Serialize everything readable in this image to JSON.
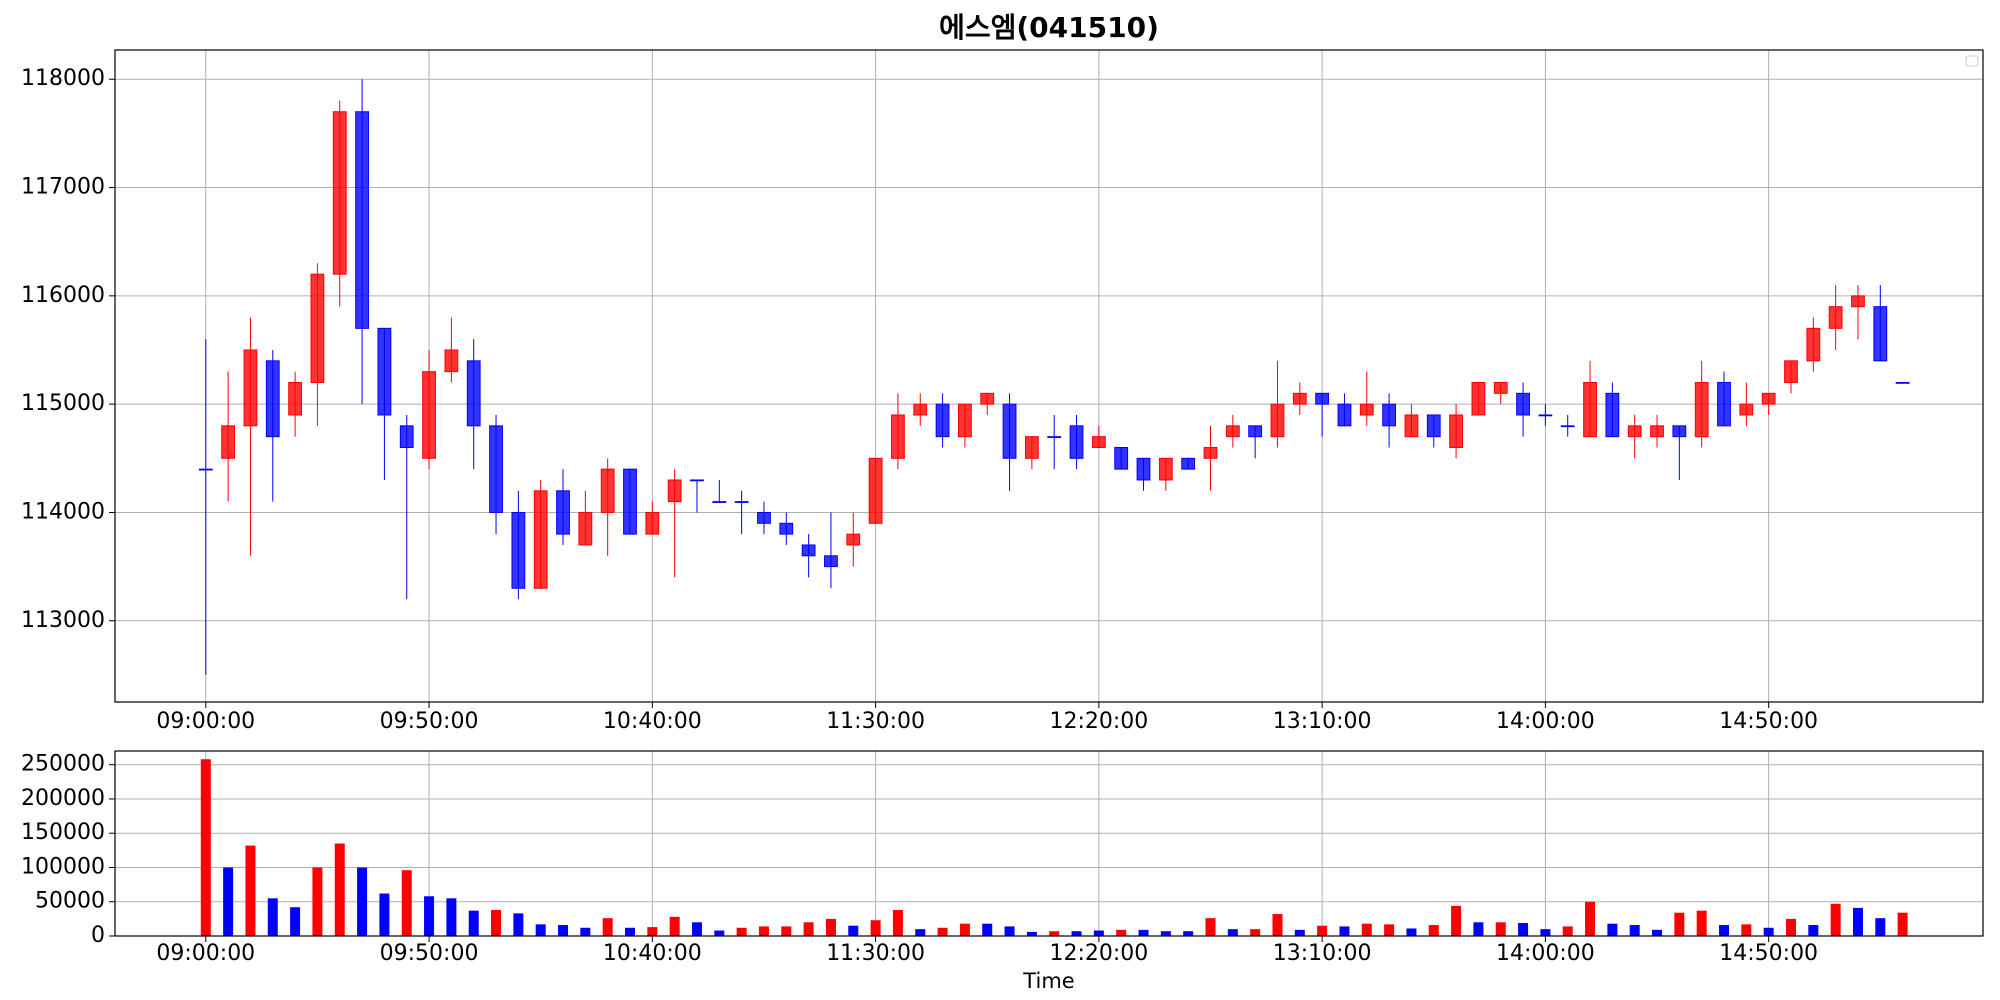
{
  "chart_data": [
    {
      "type": "candlestick",
      "title": "에스엠(041510)",
      "x": [
        "09:00:00",
        "09:05:00",
        "09:10:00",
        "09:15:00",
        "09:20:00",
        "09:25:00",
        "09:30:00",
        "09:35:00",
        "09:40:00",
        "09:45:00",
        "09:50:00",
        "09:55:00",
        "10:00:00",
        "10:05:00",
        "10:10:00",
        "10:15:00",
        "10:20:00",
        "10:25:00",
        "10:30:00",
        "10:35:00",
        "10:40:00",
        "10:45:00",
        "10:50:00",
        "10:55:00",
        "11:00:00",
        "11:05:00",
        "11:10:00",
        "11:15:00",
        "11:20:00",
        "11:25:00",
        "11:30:00",
        "11:35:00",
        "11:40:00",
        "11:45:00",
        "11:50:00",
        "11:55:00",
        "12:00:00",
        "12:05:00",
        "12:10:00",
        "12:15:00",
        "12:20:00",
        "12:25:00",
        "12:30:00",
        "12:35:00",
        "12:40:00",
        "12:45:00",
        "12:50:00",
        "12:55:00",
        "13:00:00",
        "13:05:00",
        "13:10:00",
        "13:15:00",
        "13:20:00",
        "13:25:00",
        "13:30:00",
        "13:35:00",
        "13:40:00",
        "13:45:00",
        "13:50:00",
        "13:55:00",
        "14:00:00",
        "14:05:00",
        "14:10:00",
        "14:15:00",
        "14:20:00",
        "14:25:00",
        "14:30:00",
        "14:35:00",
        "14:40:00",
        "14:45:00",
        "14:50:00",
        "14:55:00",
        "15:00:00",
        "15:05:00",
        "15:10:00",
        "15:15:00",
        "15:20:00"
      ],
      "open": [
        114400,
        114500,
        114800,
        115400,
        114900,
        115200,
        116200,
        117700,
        115700,
        114800,
        114500,
        115300,
        115400,
        114800,
        114000,
        113300,
        114200,
        113700,
        114000,
        114400,
        113800,
        114100,
        114300,
        114100,
        114100,
        114000,
        113900,
        113700,
        113600,
        113700,
        113900,
        114500,
        114900,
        115000,
        114700,
        115000,
        115000,
        114500,
        114700,
        114800,
        114600,
        114600,
        114500,
        114300,
        114500,
        114500,
        114700,
        114800,
        114700,
        115000,
        115100,
        115000,
        114900,
        115000,
        114700,
        114900,
        114600,
        114900,
        115100,
        115100,
        114900,
        114800,
        114700,
        115100,
        114700,
        114700,
        114800,
        114700,
        115200,
        114900,
        115000,
        115200,
        115400,
        115700,
        115900,
        115900,
        115200
      ],
      "high": [
        115600,
        115300,
        115800,
        115500,
        115300,
        116300,
        117800,
        118000,
        115700,
        114900,
        115500,
        115800,
        115600,
        114900,
        114200,
        114300,
        114400,
        114200,
        114500,
        114400,
        114100,
        114400,
        114300,
        114300,
        114200,
        114100,
        114000,
        113800,
        114000,
        114000,
        114500,
        115100,
        115100,
        115100,
        115000,
        115100,
        115100,
        114700,
        114900,
        114900,
        114800,
        114600,
        114500,
        114500,
        114500,
        114800,
        114900,
        114800,
        115400,
        115200,
        115100,
        115100,
        115300,
        115100,
        115000,
        114900,
        115000,
        115200,
        115200,
        115200,
        115000,
        114900,
        115400,
        115200,
        114900,
        114900,
        114800,
        115400,
        115300,
        115200,
        115100,
        115400,
        115800,
        116100,
        116100,
        116100,
        115200
      ],
      "low": [
        112500,
        114100,
        113600,
        114100,
        114700,
        114800,
        115900,
        115000,
        114300,
        113200,
        114400,
        115200,
        114400,
        113800,
        113200,
        113300,
        113700,
        113700,
        113600,
        113800,
        113800,
        113400,
        114000,
        114100,
        113800,
        113800,
        113700,
        113400,
        113300,
        113500,
        113900,
        114400,
        114800,
        114600,
        114600,
        114900,
        114200,
        114400,
        114400,
        114400,
        114600,
        114400,
        114200,
        114200,
        114400,
        114200,
        114600,
        114500,
        114600,
        114900,
        114700,
        114800,
        114800,
        114600,
        114700,
        114600,
        114500,
        114900,
        115000,
        114700,
        114800,
        114700,
        114700,
        114700,
        114500,
        114600,
        114300,
        114600,
        114800,
        114800,
        114900,
        115100,
        115300,
        115500,
        115600,
        115400,
        115200
      ],
      "close": [
        114400,
        114800,
        115500,
        114700,
        115200,
        116200,
        117700,
        115700,
        114900,
        114600,
        115300,
        115500,
        114800,
        114000,
        113300,
        114200,
        113800,
        114000,
        114400,
        113800,
        114000,
        114300,
        114300,
        114100,
        114100,
        113900,
        113800,
        113600,
        113500,
        113800,
        114500,
        114900,
        115000,
        114700,
        115000,
        115100,
        114500,
        114700,
        114700,
        114500,
        114700,
        114400,
        114300,
        114500,
        114400,
        114600,
        114800,
        114700,
        115000,
        115100,
        115000,
        114800,
        115000,
        114800,
        114900,
        114700,
        114900,
        115200,
        115200,
        114900,
        114900,
        114800,
        115200,
        114700,
        114800,
        114800,
        114700,
        115200,
        114800,
        115000,
        115100,
        115400,
        115700,
        115900,
        116000,
        115400,
        115200
      ],
      "up_color": "#ff0000",
      "down_color": "#0000ff",
      "xlim": [
        "08:39:40",
        "15:38:00"
      ],
      "xticks": [
        "09:00:00",
        "09:50:00",
        "10:40:00",
        "11:30:00",
        "12:20:00",
        "13:10:00",
        "14:00:00",
        "14:50:00"
      ],
      "ylim": [
        112250,
        118270
      ],
      "yticks": [
        113000,
        114000,
        115000,
        116000,
        117000,
        118000
      ],
      "grid": true
    },
    {
      "type": "bar",
      "xlabel": "Time",
      "x": [
        "09:00:00",
        "09:05:00",
        "09:10:00",
        "09:15:00",
        "09:20:00",
        "09:25:00",
        "09:30:00",
        "09:35:00",
        "09:40:00",
        "09:45:00",
        "09:50:00",
        "09:55:00",
        "10:00:00",
        "10:05:00",
        "10:10:00",
        "10:15:00",
        "10:20:00",
        "10:25:00",
        "10:30:00",
        "10:35:00",
        "10:40:00",
        "10:45:00",
        "10:50:00",
        "10:55:00",
        "11:00:00",
        "11:05:00",
        "11:10:00",
        "11:15:00",
        "11:20:00",
        "11:25:00",
        "11:30:00",
        "11:35:00",
        "11:40:00",
        "11:45:00",
        "11:50:00",
        "11:55:00",
        "12:00:00",
        "12:05:00",
        "12:10:00",
        "12:15:00",
        "12:20:00",
        "12:25:00",
        "12:30:00",
        "12:35:00",
        "12:40:00",
        "12:45:00",
        "12:50:00",
        "12:55:00",
        "13:00:00",
        "13:05:00",
        "13:10:00",
        "13:15:00",
        "13:20:00",
        "13:25:00",
        "13:30:00",
        "13:35:00",
        "13:40:00",
        "13:45:00",
        "13:50:00",
        "13:55:00",
        "14:00:00",
        "14:05:00",
        "14:10:00",
        "14:15:00",
        "14:20:00",
        "14:25:00",
        "14:30:00",
        "14:35:00",
        "14:40:00",
        "14:45:00",
        "14:50:00",
        "14:55:00",
        "15:00:00",
        "15:05:00",
        "15:10:00",
        "15:15:00",
        "15:20:00"
      ],
      "values": [
        258000,
        100000,
        132000,
        55000,
        42000,
        100000,
        135000,
        100000,
        62000,
        96000,
        58000,
        55000,
        37000,
        38000,
        33000,
        17000,
        16000,
        12000,
        26000,
        12000,
        13000,
        28000,
        20000,
        8000,
        12000,
        14000,
        14000,
        20000,
        25000,
        15000,
        23000,
        38000,
        10000,
        12000,
        18000,
        18000,
        14000,
        6000,
        7000,
        7000,
        8000,
        9000,
        9000,
        7000,
        7000,
        26000,
        10000,
        10000,
        32000,
        9000,
        15000,
        14000,
        18000,
        17000,
        11000,
        16000,
        44000,
        20000,
        20000,
        19000,
        10000,
        14000,
        50000,
        18000,
        16000,
        9000,
        34000,
        37000,
        16000,
        17000,
        12000,
        25000,
        16000,
        47000,
        41000,
        26000,
        34000
      ],
      "colors": [
        "red",
        "blue",
        "red",
        "blue",
        "blue",
        "red",
        "red",
        "blue",
        "blue",
        "red",
        "blue",
        "blue",
        "blue",
        "red",
        "blue",
        "blue",
        "blue",
        "blue",
        "red",
        "blue",
        "red",
        "red",
        "blue",
        "blue",
        "red",
        "red",
        "red",
        "red",
        "red",
        "blue",
        "red",
        "red",
        "blue",
        "red",
        "red",
        "blue",
        "blue",
        "blue",
        "red",
        "blue",
        "blue",
        "red",
        "blue",
        "blue",
        "blue",
        "red",
        "blue",
        "red",
        "red",
        "blue",
        "red",
        "blue",
        "red",
        "red",
        "blue",
        "red",
        "red",
        "blue",
        "red",
        "blue",
        "blue",
        "red",
        "red",
        "blue",
        "blue",
        "blue",
        "red",
        "red",
        "blue",
        "red",
        "blue",
        "red",
        "blue",
        "red",
        "blue",
        "blue",
        "red"
      ],
      "xlim": [
        "08:39:40",
        "15:38:00"
      ],
      "xticks": [
        "09:00:00",
        "09:50:00",
        "10:40:00",
        "11:30:00",
        "12:20:00",
        "13:10:00",
        "14:00:00",
        "14:50:00"
      ],
      "ylim": [
        0,
        270000
      ],
      "yticks": [
        0,
        50000,
        100000,
        150000,
        200000,
        250000
      ],
      "grid": true
    }
  ]
}
